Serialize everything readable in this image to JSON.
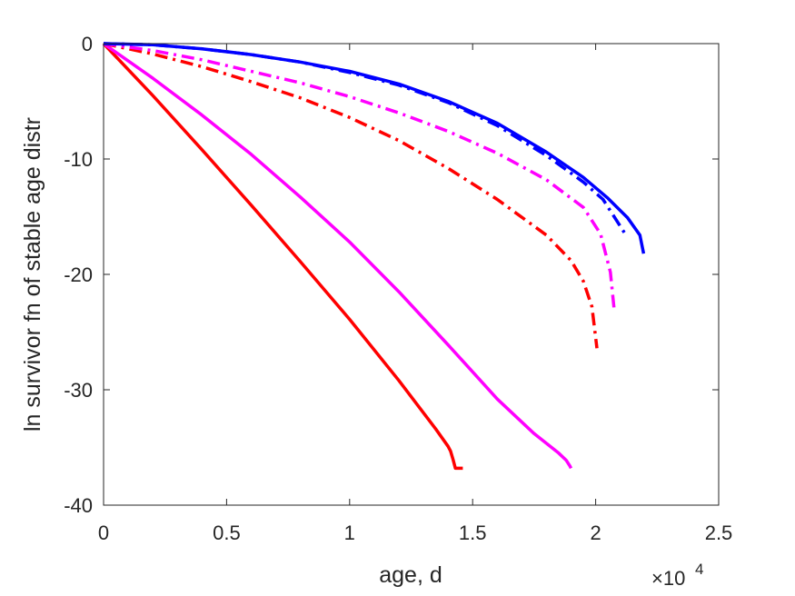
{
  "chart_data": {
    "type": "line",
    "title": "",
    "xlabel": "age, d",
    "ylabel": "ln survivor fn of stable age distr",
    "x_multiplier": {
      "base": "×10",
      "exponent": "4"
    },
    "xlim": [
      0,
      25000
    ],
    "ylim": [
      -40,
      0
    ],
    "x_ticks": [
      0,
      5000,
      10000,
      15000,
      20000,
      25000
    ],
    "x_tick_labels": [
      "0",
      "0.5",
      "1",
      "1.5",
      "2",
      "2.5"
    ],
    "y_ticks": [
      0,
      -10,
      -20,
      -30,
      -40
    ],
    "y_tick_labels": [
      "0",
      "-10",
      "-20",
      "-30",
      "-40"
    ],
    "grid": false,
    "series": [
      {
        "style": "solid",
        "color": "#ff0000",
        "x": [
          0,
          2000,
          4000,
          6000,
          8000,
          10000,
          12000,
          13500,
          14000,
          14100,
          14200,
          14300,
          14600
        ],
        "y": [
          0,
          -4.5,
          -9.2,
          -14.0,
          -18.9,
          -23.9,
          -29.2,
          -33.4,
          -34.9,
          -35.3,
          -36.0,
          -36.8,
          -36.8
        ]
      },
      {
        "style": "solid",
        "color": "#ff00ff",
        "x": [
          0,
          2000,
          4000,
          6000,
          8000,
          10000,
          12000,
          14000,
          16000,
          17500,
          18500,
          18800,
          18950,
          19000
        ],
        "y": [
          0,
          -3.0,
          -6.2,
          -9.6,
          -13.3,
          -17.2,
          -21.5,
          -26.1,
          -30.8,
          -33.8,
          -35.5,
          -36.1,
          -36.6,
          -36.8
        ]
      },
      {
        "style": "dashdot",
        "color": "#ff0000",
        "x": [
          0,
          2000,
          4000,
          6000,
          8000,
          10000,
          12000,
          14000,
          16000,
          18000,
          19000,
          19500,
          19850,
          20050
        ],
        "y": [
          0,
          -0.9,
          -2.0,
          -3.3,
          -4.7,
          -6.4,
          -8.4,
          -10.8,
          -13.5,
          -16.6,
          -18.8,
          -20.6,
          -22.8,
          -26.4
        ]
      },
      {
        "style": "dashdot",
        "color": "#ff00ff",
        "x": [
          0,
          2000,
          4000,
          6000,
          8000,
          10000,
          12000,
          14000,
          16000,
          18000,
          19500,
          20200,
          20600,
          20750
        ],
        "y": [
          0,
          -0.6,
          -1.4,
          -2.4,
          -3.4,
          -4.6,
          -6.0,
          -7.6,
          -9.5,
          -11.8,
          -14.2,
          -16.5,
          -19.8,
          -23.0
        ]
      },
      {
        "style": "dashdot",
        "color": "#0000ff",
        "x": [
          0,
          2000,
          4000,
          6000,
          8000,
          10000,
          12000,
          14000,
          16000,
          18000,
          19500,
          20300,
          20900,
          21200
        ],
        "y": [
          0,
          -0.1,
          -0.45,
          -0.95,
          -1.6,
          -2.5,
          -3.6,
          -5.1,
          -7.1,
          -9.7,
          -12.0,
          -13.5,
          -15.5,
          -16.5
        ]
      },
      {
        "style": "solid",
        "color": "#0000ff",
        "x": [
          0,
          2000,
          4000,
          6000,
          8000,
          10000,
          12000,
          14000,
          16000,
          18000,
          19500,
          20500,
          21300,
          21800,
          21950
        ],
        "y": [
          0,
          -0.1,
          -0.45,
          -0.95,
          -1.6,
          -2.4,
          -3.5,
          -5.0,
          -6.9,
          -9.4,
          -11.6,
          -13.4,
          -15.1,
          -16.6,
          -18.2
        ]
      }
    ]
  }
}
